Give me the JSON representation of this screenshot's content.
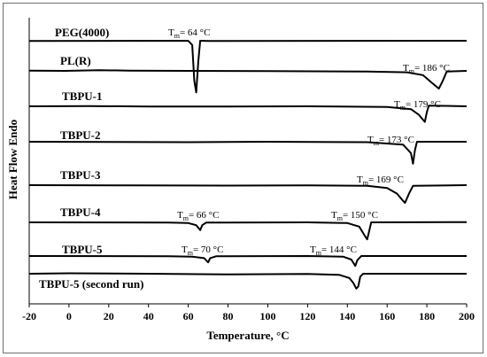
{
  "chart_data": {
    "type": "line",
    "xlabel": "Temperature, °C",
    "ylabel": "Heat Flow Endo",
    "xlim": [
      -20,
      200
    ],
    "xticks": [
      -20,
      0,
      20,
      40,
      60,
      80,
      100,
      120,
      140,
      160,
      180,
      200
    ],
    "series": [
      {
        "name": "PEG(4000)",
        "annotations": [
          {
            "text": "= 64 °C",
            "x": 64
          }
        ],
        "points": [
          [
            -20,
            -0.02
          ],
          [
            60,
            0.0
          ],
          [
            62,
            -0.3
          ],
          [
            63,
            -2.8
          ],
          [
            64,
            -3.65
          ],
          [
            65,
            -1.5
          ],
          [
            66,
            0.0
          ],
          [
            70,
            -0.02
          ],
          [
            200,
            0.0
          ]
        ]
      },
      {
        "name": "PL(R)",
        "annotations": [
          {
            "text": "= 186 °C",
            "x": 186
          }
        ],
        "points": [
          [
            -20,
            0.02
          ],
          [
            -2,
            0.0
          ],
          [
            15,
            0.05
          ],
          [
            30,
            0.02
          ],
          [
            60,
            0.0
          ],
          [
            100,
            -0.02
          ],
          [
            150,
            -0.05
          ],
          [
            170,
            -0.1
          ],
          [
            178,
            -0.3
          ],
          [
            183,
            -0.9
          ],
          [
            186,
            -1.25
          ],
          [
            188,
            -0.7
          ],
          [
            190,
            -0.05
          ],
          [
            200,
            0.0
          ]
        ]
      },
      {
        "name": "TBPU-1",
        "annotations": [
          {
            "text": "= 179 °C",
            "x": 179
          }
        ],
        "points": [
          [
            -20,
            0.0
          ],
          [
            10,
            0.02
          ],
          [
            40,
            -0.02
          ],
          [
            80,
            -0.02
          ],
          [
            120,
            0.0
          ],
          [
            160,
            -0.05
          ],
          [
            172,
            -0.2
          ],
          [
            176,
            -0.6
          ],
          [
            179,
            -1.1
          ],
          [
            180,
            -0.4
          ],
          [
            181,
            0.05
          ],
          [
            200,
            0.0
          ]
        ]
      },
      {
        "name": "TBPU-2",
        "annotations": [
          {
            "text": "= 173 °C",
            "x": 173
          }
        ],
        "points": [
          [
            -20,
            0.0
          ],
          [
            20,
            -0.02
          ],
          [
            60,
            -0.03
          ],
          [
            100,
            0.0
          ],
          [
            150,
            -0.03
          ],
          [
            168,
            -0.2
          ],
          [
            172,
            -0.8
          ],
          [
            173,
            -1.55
          ],
          [
            174,
            -0.6
          ],
          [
            175,
            0.0
          ],
          [
            200,
            0.0
          ]
        ]
      },
      {
        "name": "TBPU-3",
        "annotations": [
          {
            "text": "= 169 °C",
            "x": 169
          }
        ],
        "points": [
          [
            -20,
            0.0
          ],
          [
            30,
            -0.02
          ],
          [
            80,
            -0.03
          ],
          [
            120,
            -0.02
          ],
          [
            150,
            -0.05
          ],
          [
            160,
            -0.2
          ],
          [
            165,
            -0.6
          ],
          [
            168,
            -1.1
          ],
          [
            169,
            -1.25
          ],
          [
            171,
            -0.6
          ],
          [
            173,
            -0.05
          ],
          [
            200,
            0.0
          ]
        ]
      },
      {
        "name": "TBPU-4",
        "annotations": [
          {
            "text": "= 66 °C",
            "x": 66
          },
          {
            "text": "= 150 °C",
            "x": 150
          }
        ],
        "points": [
          [
            -20,
            0.0
          ],
          [
            50,
            -0.02
          ],
          [
            60,
            -0.05
          ],
          [
            64,
            -0.2
          ],
          [
            66,
            -0.55
          ],
          [
            67,
            -0.2
          ],
          [
            69,
            -0.02
          ],
          [
            120,
            0.0
          ],
          [
            140,
            -0.05
          ],
          [
            146,
            -0.3
          ],
          [
            149,
            -1.0
          ],
          [
            150,
            -1.2
          ],
          [
            151,
            -0.6
          ],
          [
            152,
            0.0
          ],
          [
            200,
            0.02
          ]
        ]
      },
      {
        "name": "TBPU-5",
        "annotations": [
          {
            "text": "= 70 °C",
            "x": 70
          },
          {
            "text": "= 144 °C",
            "x": 144
          }
        ],
        "points": [
          [
            -20,
            0.0
          ],
          [
            50,
            -0.02
          ],
          [
            62,
            -0.05
          ],
          [
            68,
            -0.15
          ],
          [
            70,
            -0.45
          ],
          [
            71,
            -0.15
          ],
          [
            74,
            -0.02
          ],
          [
            120,
            0.0
          ],
          [
            138,
            -0.05
          ],
          [
            142,
            -0.25
          ],
          [
            144,
            -0.7
          ],
          [
            145,
            -0.3
          ],
          [
            147,
            0.0
          ],
          [
            200,
            0.0
          ]
        ]
      },
      {
        "name": "TBPU-5 (second run)",
        "annotations": [],
        "points": [
          [
            -20,
            0.0
          ],
          [
            0,
            0.03
          ],
          [
            40,
            0.0
          ],
          [
            80,
            -0.05
          ],
          [
            120,
            -0.02
          ],
          [
            136,
            -0.08
          ],
          [
            141,
            -0.3
          ],
          [
            143,
            -0.65
          ],
          [
            144.5,
            -1.05
          ],
          [
            145.5,
            -0.9
          ],
          [
            146.5,
            -0.2
          ],
          [
            148,
            0.0
          ],
          [
            200,
            0.0
          ]
        ]
      }
    ]
  }
}
